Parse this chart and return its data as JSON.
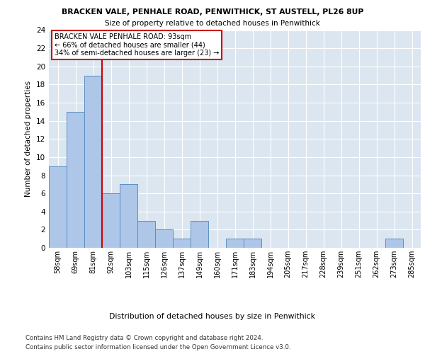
{
  "title1": "BRACKEN VALE, PENHALE ROAD, PENWITHICK, ST AUSTELL, PL26 8UP",
  "title2": "Size of property relative to detached houses in Penwithick",
  "xlabel": "Distribution of detached houses by size in Penwithick",
  "ylabel": "Number of detached properties",
  "bar_labels": [
    "58sqm",
    "69sqm",
    "81sqm",
    "92sqm",
    "103sqm",
    "115sqm",
    "126sqm",
    "137sqm",
    "149sqm",
    "160sqm",
    "171sqm",
    "183sqm",
    "194sqm",
    "205sqm",
    "217sqm",
    "228sqm",
    "239sqm",
    "251sqm",
    "262sqm",
    "273sqm",
    "285sqm"
  ],
  "bar_values": [
    9,
    15,
    19,
    6,
    7,
    3,
    2,
    1,
    3,
    0,
    1,
    1,
    0,
    0,
    0,
    0,
    0,
    0,
    0,
    1,
    0
  ],
  "bar_color": "#aec6e8",
  "bar_edge_color": "#5a8fc2",
  "vline_x": 3,
  "vline_color": "#cc0000",
  "annotation_line1": "BRACKEN VALE PENHALE ROAD: 93sqm",
  "annotation_line2": "← 66% of detached houses are smaller (44)",
  "annotation_line3": "34% of semi-detached houses are larger (23) →",
  "annotation_box_color": "#ffffff",
  "annotation_box_edge": "#cc0000",
  "ylim": [
    0,
    24
  ],
  "yticks": [
    0,
    2,
    4,
    6,
    8,
    10,
    12,
    14,
    16,
    18,
    20,
    22,
    24
  ],
  "background_color": "#dce6f0",
  "footer1": "Contains HM Land Registry data © Crown copyright and database right 2024.",
  "footer2": "Contains public sector information licensed under the Open Government Licence v3.0."
}
